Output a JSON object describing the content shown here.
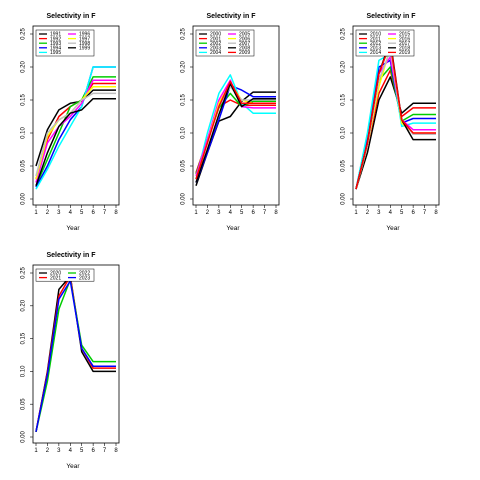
{
  "chart_data": [
    {
      "type": "line",
      "title": "Selectivity in F",
      "xlabel": "Year",
      "ylabel": "",
      "x": [
        1,
        2,
        3,
        4,
        5,
        6,
        7,
        8
      ],
      "ylim": [
        0,
        0.25
      ],
      "yticks": [
        "0.00",
        "0.05",
        "0.10",
        "0.15",
        "0.20",
        "0.25"
      ],
      "xticks": [
        "1",
        "2",
        "3",
        "4",
        "5",
        "6",
        "7",
        "8"
      ],
      "legend_position": "top-left",
      "series": [
        {
          "name": "1991",
          "color": "#000000",
          "values": [
            0.05,
            0.105,
            0.135,
            0.145,
            0.148,
            0.165,
            0.165,
            0.165
          ]
        },
        {
          "name": "1992",
          "color": "#ff0000",
          "values": [
            0.03,
            0.09,
            0.125,
            0.14,
            0.15,
            0.175,
            0.175,
            0.175
          ]
        },
        {
          "name": "1993",
          "color": "#00cd00",
          "values": [
            0.02,
            0.06,
            0.1,
            0.14,
            0.15,
            0.185,
            0.185,
            0.185
          ]
        },
        {
          "name": "1994",
          "color": "#0000ff",
          "values": [
            0.018,
            0.05,
            0.09,
            0.12,
            0.14,
            0.2,
            0.2,
            0.2
          ]
        },
        {
          "name": "1995",
          "color": "#00ffff",
          "values": [
            0.015,
            0.045,
            0.08,
            0.11,
            0.14,
            0.2,
            0.2,
            0.2
          ]
        },
        {
          "name": "1996",
          "color": "#ff00ff",
          "values": [
            0.025,
            0.085,
            0.11,
            0.125,
            0.145,
            0.18,
            0.18,
            0.18
          ]
        },
        {
          "name": "1997",
          "color": "#ffff00",
          "values": [
            0.03,
            0.095,
            0.12,
            0.13,
            0.15,
            0.17,
            0.17,
            0.17
          ]
        },
        {
          "name": "1998",
          "color": "#bebebe",
          "values": [
            0.035,
            0.1,
            0.12,
            0.13,
            0.15,
            0.16,
            0.16,
            0.16
          ]
        },
        {
          "name": "1999",
          "color": "#000000",
          "values": [
            0.02,
            0.07,
            0.11,
            0.13,
            0.135,
            0.152,
            0.152,
            0.152
          ]
        }
      ]
    },
    {
      "type": "line",
      "title": "Selectivity in F",
      "xlabel": "Year",
      "ylabel": "",
      "x": [
        1,
        2,
        3,
        4,
        5,
        6,
        7,
        8
      ],
      "ylim": [
        0,
        0.25
      ],
      "yticks": [
        "0.00",
        "0.05",
        "0.10",
        "0.15",
        "0.20",
        "0.25"
      ],
      "xticks": [
        "1",
        "2",
        "3",
        "4",
        "5",
        "6",
        "7",
        "8"
      ],
      "legend_position": "top-left",
      "series": [
        {
          "name": "2000",
          "color": "#000000",
          "values": [
            0.02,
            0.07,
            0.118,
            0.125,
            0.148,
            0.162,
            0.162,
            0.162
          ]
        },
        {
          "name": "2001",
          "color": "#ff0000",
          "values": [
            0.04,
            0.09,
            0.14,
            0.15,
            0.142,
            0.142,
            0.142,
            0.142
          ]
        },
        {
          "name": "2002",
          "color": "#00cd00",
          "values": [
            0.038,
            0.088,
            0.138,
            0.16,
            0.14,
            0.148,
            0.148,
            0.148
          ]
        },
        {
          "name": "2003",
          "color": "#0000ff",
          "values": [
            0.025,
            0.07,
            0.12,
            0.172,
            0.165,
            0.155,
            0.155,
            0.155
          ]
        },
        {
          "name": "2004",
          "color": "#00ffff",
          "values": [
            0.03,
            0.1,
            0.16,
            0.188,
            0.145,
            0.13,
            0.13,
            0.13
          ]
        },
        {
          "name": "2005",
          "color": "#ff00ff",
          "values": [
            0.035,
            0.09,
            0.15,
            0.18,
            0.14,
            0.138,
            0.138,
            0.138
          ]
        },
        {
          "name": "2006",
          "color": "#ffff00",
          "values": [
            0.03,
            0.085,
            0.145,
            0.175,
            0.15,
            0.145,
            0.145,
            0.145
          ]
        },
        {
          "name": "2007",
          "color": "#bebebe",
          "values": [
            0.03,
            0.085,
            0.14,
            0.17,
            0.15,
            0.15,
            0.15,
            0.15
          ]
        },
        {
          "name": "2008",
          "color": "#000000",
          "values": [
            0.025,
            0.075,
            0.128,
            0.175,
            0.14,
            0.152,
            0.152,
            0.152
          ]
        },
        {
          "name": "2009",
          "color": "#ff0000",
          "values": [
            0.03,
            0.085,
            0.14,
            0.178,
            0.145,
            0.145,
            0.145,
            0.145
          ]
        }
      ]
    },
    {
      "type": "line",
      "title": "Selectivity in F",
      "xlabel": "Year",
      "ylabel": "",
      "x": [
        1,
        2,
        3,
        4,
        5,
        6,
        7,
        8
      ],
      "ylim": [
        0,
        0.25
      ],
      "yticks": [
        "0.00",
        "0.05",
        "0.10",
        "0.15",
        "0.20",
        "0.25"
      ],
      "xticks": [
        "1",
        "2",
        "3",
        "4",
        "5",
        "6",
        "7",
        "8"
      ],
      "legend_position": "top-left",
      "series": [
        {
          "name": "2010",
          "color": "#000000",
          "values": [
            0.015,
            0.07,
            0.15,
            0.185,
            0.13,
            0.145,
            0.145,
            0.145
          ]
        },
        {
          "name": "2011",
          "color": "#ff0000",
          "values": [
            0.015,
            0.08,
            0.16,
            0.195,
            0.125,
            0.138,
            0.138,
            0.138
          ]
        },
        {
          "name": "2012",
          "color": "#00cd00",
          "values": [
            0.015,
            0.09,
            0.18,
            0.2,
            0.118,
            0.128,
            0.128,
            0.128
          ]
        },
        {
          "name": "2013",
          "color": "#0000ff",
          "values": [
            0.015,
            0.095,
            0.2,
            0.21,
            0.115,
            0.122,
            0.122,
            0.122
          ]
        },
        {
          "name": "2014",
          "color": "#00ffff",
          "values": [
            0.015,
            0.1,
            0.21,
            0.22,
            0.11,
            0.115,
            0.115,
            0.115
          ]
        },
        {
          "name": "2015",
          "color": "#ff00ff",
          "values": [
            0.015,
            0.085,
            0.19,
            0.215,
            0.12,
            0.105,
            0.105,
            0.105
          ]
        },
        {
          "name": "2016",
          "color": "#ffff00",
          "values": [
            0.015,
            0.08,
            0.17,
            0.23,
            0.115,
            0.1,
            0.1,
            0.1
          ]
        },
        {
          "name": "2017",
          "color": "#bebebe",
          "values": [
            0.015,
            0.08,
            0.18,
            0.225,
            0.12,
            0.098,
            0.098,
            0.098
          ]
        },
        {
          "name": "2018",
          "color": "#000000",
          "values": [
            0.015,
            0.085,
            0.19,
            0.24,
            0.12,
            0.09,
            0.09,
            0.09
          ]
        },
        {
          "name": "2019",
          "color": "#ff0000",
          "values": [
            0.015,
            0.085,
            0.19,
            0.235,
            0.12,
            0.1,
            0.1,
            0.1
          ]
        }
      ]
    },
    {
      "type": "line",
      "title": "Selectivity in F",
      "xlabel": "Year",
      "ylabel": "",
      "x": [
        1,
        2,
        3,
        4,
        5,
        6,
        7,
        8
      ],
      "ylim": [
        0,
        0.25
      ],
      "yticks": [
        "0.00",
        "0.05",
        "0.10",
        "0.15",
        "0.20",
        "0.25"
      ],
      "xticks": [
        "1",
        "2",
        "3",
        "4",
        "5",
        "6",
        "7",
        "8"
      ],
      "legend_position": "top-left",
      "series": [
        {
          "name": "2020",
          "color": "#000000",
          "values": [
            0.008,
            0.1,
            0.225,
            0.245,
            0.13,
            0.1,
            0.1,
            0.1
          ]
        },
        {
          "name": "2021",
          "color": "#ff0000",
          "values": [
            0.008,
            0.098,
            0.215,
            0.245,
            0.135,
            0.105,
            0.105,
            0.105
          ]
        },
        {
          "name": "2022",
          "color": "#00cd00",
          "values": [
            0.008,
            0.085,
            0.195,
            0.24,
            0.14,
            0.115,
            0.115,
            0.115
          ]
        },
        {
          "name": "2023",
          "color": "#0000ff",
          "values": [
            0.008,
            0.095,
            0.21,
            0.238,
            0.135,
            0.108,
            0.108,
            0.108
          ]
        }
      ]
    }
  ]
}
